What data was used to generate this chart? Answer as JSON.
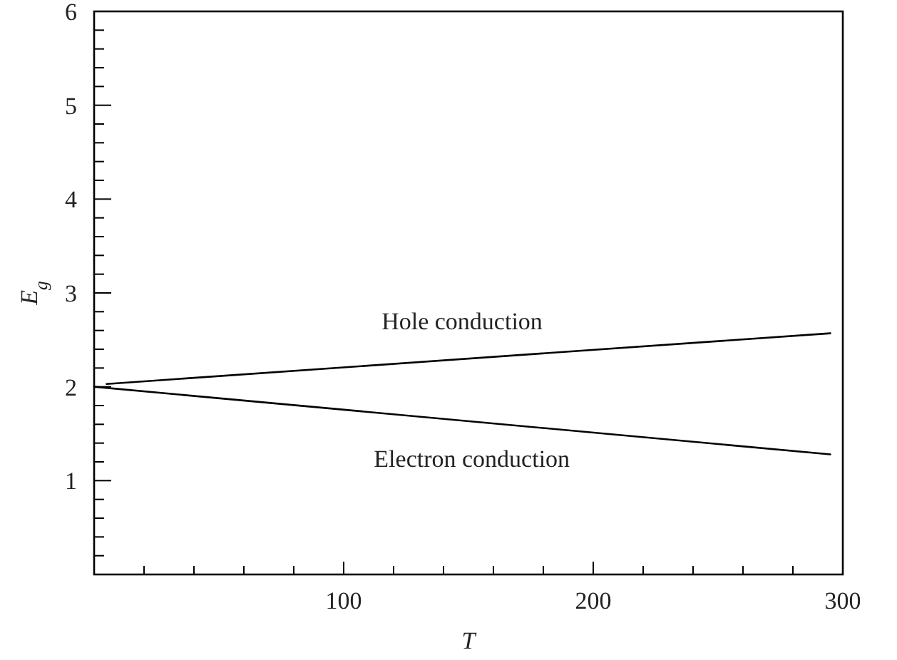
{
  "chart_data": {
    "type": "line",
    "xlabel": "T",
    "ylabel": "E$_{g}$",
    "xlim": [
      0,
      300
    ],
    "ylim": [
      0,
      6
    ],
    "xticks": [
      {
        "value": 20,
        "label": null
      },
      {
        "value": 40,
        "label": null
      },
      {
        "value": 60,
        "label": null
      },
      {
        "value": 80,
        "label": null
      },
      100,
      {
        "value": 120,
        "label": null
      },
      {
        "value": 140,
        "label": null
      },
      {
        "value": 160,
        "label": null
      },
      {
        "value": 180,
        "label": null
      },
      200,
      {
        "value": 220,
        "label": null
      },
      {
        "value": 240,
        "label": null
      },
      {
        "value": 260,
        "label": null
      },
      {
        "value": 280,
        "label": null
      },
      300
    ],
    "yticks": [
      {
        "value": 0.2,
        "label": null
      },
      {
        "value": 0.4,
        "label": null
      },
      {
        "value": 0.6,
        "label": null
      },
      {
        "value": 0.8,
        "label": null
      },
      1,
      {
        "value": 1.2,
        "label": null
      },
      {
        "value": 1.4,
        "label": null
      },
      {
        "value": 1.6,
        "label": null
      },
      {
        "value": 1.8,
        "label": null
      },
      2,
      {
        "value": 2.2,
        "label": null
      },
      {
        "value": 2.4,
        "label": null
      },
      {
        "value": 2.6,
        "label": null
      },
      {
        "value": 2.8,
        "label": null
      },
      3,
      {
        "value": 3.2,
        "label": null
      },
      {
        "value": 3.4,
        "label": null
      },
      {
        "value": 3.6,
        "label": null
      },
      {
        "value": 3.8,
        "label": null
      },
      4,
      {
        "value": 4.2,
        "label": null
      },
      {
        "value": 4.4,
        "label": null
      },
      {
        "value": 4.6,
        "label": null
      },
      {
        "value": 4.8,
        "label": null
      },
      5,
      {
        "value": 5.2,
        "label": null
      },
      {
        "value": 5.4,
        "label": null
      },
      {
        "value": 5.6,
        "label": null
      },
      {
        "value": 5.8,
        "label": null
      },
      6
    ],
    "grid": false,
    "marker": "none",
    "line_style": "solid",
    "series": [
      {
        "name": "Hole conduction",
        "color": "#000000",
        "x": [
          5,
          295
        ],
        "values": [
          2.03,
          2.57
        ]
      },
      {
        "name": "Electron conduction",
        "color": "#000000",
        "x": [
          0,
          295
        ],
        "values": [
          2.0,
          1.28
        ]
      }
    ]
  }
}
